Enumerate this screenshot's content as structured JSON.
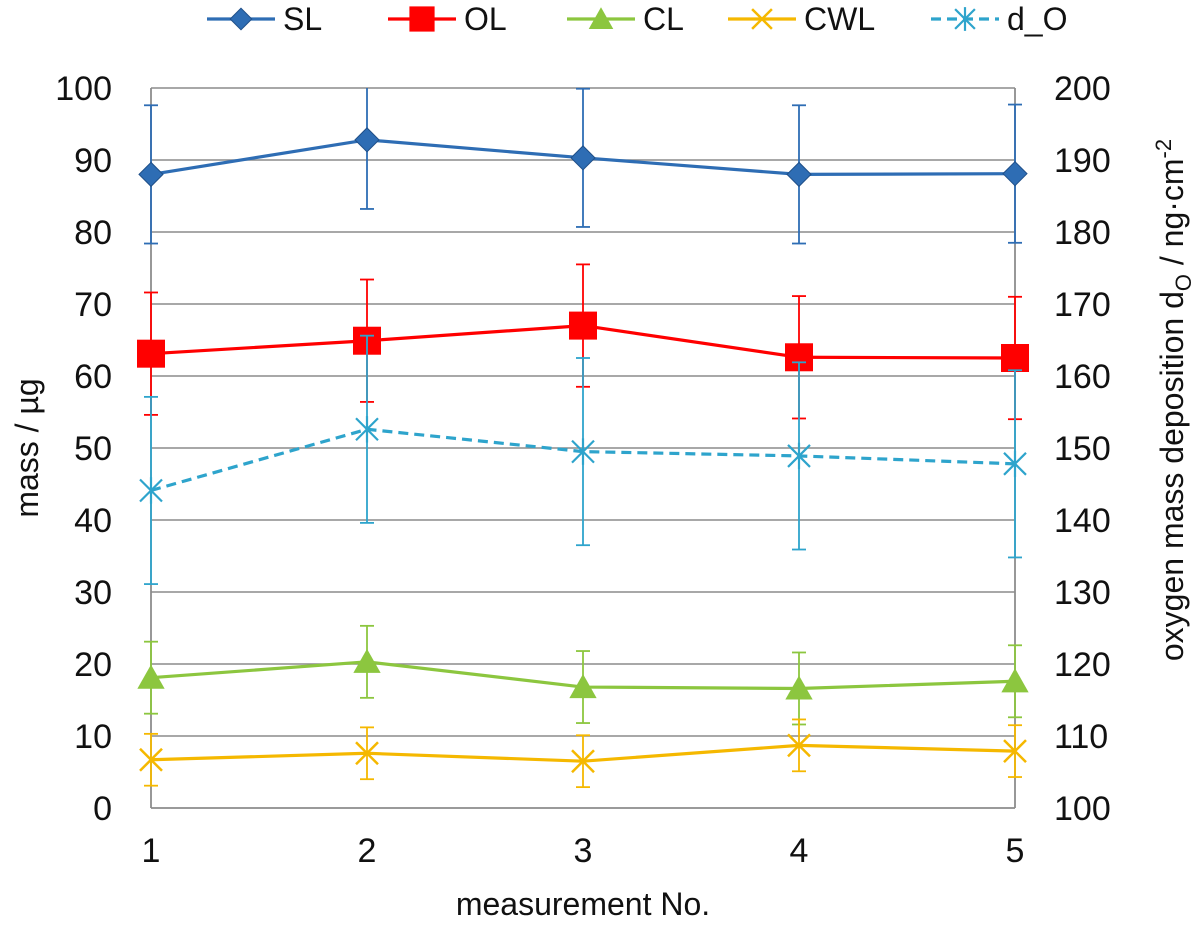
{
  "chart_data": {
    "type": "line",
    "title": "",
    "xlabel": "measurement No.",
    "ylabel": "mass / µg",
    "y2label": {
      "prefix": "oxygen mass deposition  d",
      "subscript": "O",
      "suffix": " / ng·cm",
      "superscript": "-2"
    },
    "x": [
      1,
      2,
      3,
      4,
      5
    ],
    "xticks": [
      "1",
      "2",
      "3",
      "4",
      "5"
    ],
    "ylim": [
      0,
      100
    ],
    "yticks": [
      "0",
      "10",
      "20",
      "30",
      "40",
      "50",
      "60",
      "70",
      "80",
      "90",
      "100"
    ],
    "y2lim": [
      100,
      200
    ],
    "y2ticks": [
      "100",
      "110",
      "120",
      "130",
      "140",
      "150",
      "160",
      "170",
      "180",
      "190",
      "200"
    ],
    "grid": true,
    "legend_position": "top",
    "series": [
      {
        "name": "SL",
        "axis": "left",
        "color": "#2E6DB4",
        "marker": "diamond",
        "dash": false,
        "values": [
          88,
          92.8,
          90.3,
          88,
          88.1
        ],
        "errors": [
          9.6,
          9.6,
          9.6,
          9.6,
          9.6
        ]
      },
      {
        "name": "OL",
        "axis": "left",
        "color": "#FF0000",
        "marker": "square",
        "dash": false,
        "values": [
          63.1,
          64.9,
          67,
          62.6,
          62.5
        ],
        "errors": [
          8.5,
          8.5,
          8.5,
          8.5,
          8.5
        ]
      },
      {
        "name": "CL",
        "axis": "left",
        "color": "#8CC63F",
        "marker": "triangle",
        "dash": false,
        "values": [
          18.1,
          20.3,
          16.8,
          16.6,
          17.6
        ],
        "errors": [
          5,
          5,
          5,
          5,
          5
        ]
      },
      {
        "name": "CWL",
        "axis": "left",
        "color": "#F5B800",
        "marker": "x",
        "dash": false,
        "values": [
          6.7,
          7.6,
          6.5,
          8.7,
          7.9
        ],
        "errors": [
          3.6,
          3.6,
          3.6,
          3.6,
          3.6
        ]
      },
      {
        "name": "d_O",
        "axis": "right",
        "color": "#2EA4CC",
        "marker": "asterisk",
        "dash": true,
        "values": [
          144.1,
          152.6,
          149.5,
          148.9,
          147.8
        ],
        "errors": [
          13,
          13,
          13,
          13,
          13
        ]
      }
    ]
  }
}
